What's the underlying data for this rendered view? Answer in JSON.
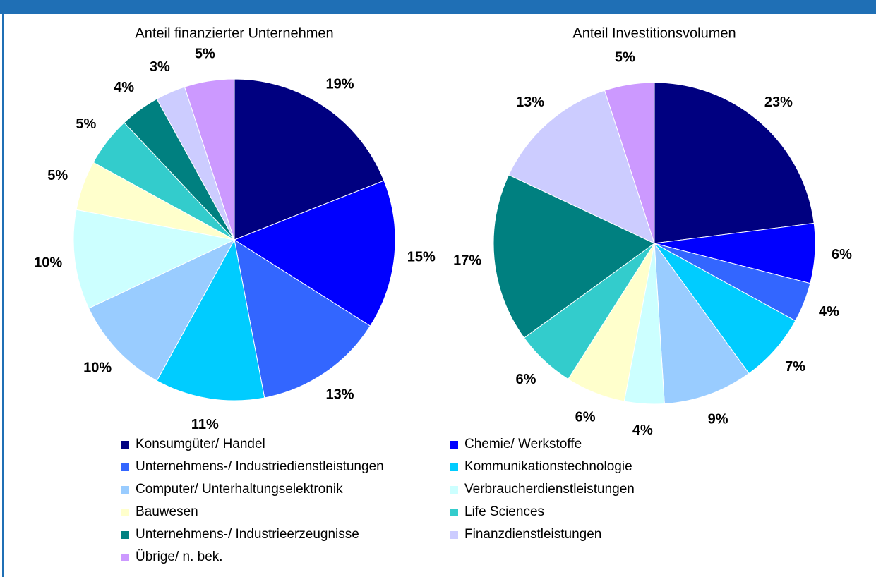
{
  "chart_data": [
    {
      "type": "pie",
      "title": "Anteil finanzierter Unternehmen",
      "categories": [
        "Konsumgüter/ Handel",
        "Chemie/ Werkstoffe",
        "Unternehmens-/ Industriedienstleistungen",
        "Kommunikationstechnologie",
        "Computer/ Unterhaltungselektronik",
        "Verbraucherdienstleistungen",
        "Bauwesen",
        "Life Sciences",
        "Unternehmens-/ Industrieerzeugnisse",
        "Finanzdienstleistungen",
        "Übrige/ n. bek."
      ],
      "values": [
        19,
        15,
        13,
        11,
        10,
        10,
        5,
        5,
        4,
        3,
        5
      ],
      "value_labels": [
        "19%",
        "15%",
        "13%",
        "11%",
        "10%",
        "10%",
        "5%",
        "5%",
        "4%",
        "3%",
        "5%"
      ],
      "colors": [
        "#000080",
        "#0000ff",
        "#3366ff",
        "#00ccff",
        "#99ccff",
        "#ccffff",
        "#ffffcc",
        "#33cccc",
        "#008080",
        "#ccccff",
        "#cc99ff"
      ]
    },
    {
      "type": "pie",
      "title": "Anteil Investitionsvolumen",
      "categories": [
        "Konsumgüter/ Handel",
        "Chemie/ Werkstoffe",
        "Unternehmens-/ Industriedienstleistungen",
        "Kommunikationstechnologie",
        "Computer/ Unterhaltungselektronik",
        "Verbraucherdienstleistungen",
        "Bauwesen",
        "Life Sciences",
        "Unternehmens-/ Industrieerzeugnisse",
        "Finanzdienstleistungen",
        "Übrige/ n. bek."
      ],
      "values": [
        23,
        6,
        4,
        7,
        9,
        4,
        6,
        6,
        17,
        13,
        5
      ],
      "value_labels": [
        "23%",
        "6%",
        "4%",
        "7%",
        "9%",
        "4%",
        "6%",
        "6%",
        "17%",
        "13%",
        "5%"
      ],
      "colors": [
        "#000080",
        "#0000ff",
        "#3366ff",
        "#00ccff",
        "#99ccff",
        "#ccffff",
        "#ffffcc",
        "#33cccc",
        "#008080",
        "#ccccff",
        "#cc99ff"
      ]
    }
  ]
}
